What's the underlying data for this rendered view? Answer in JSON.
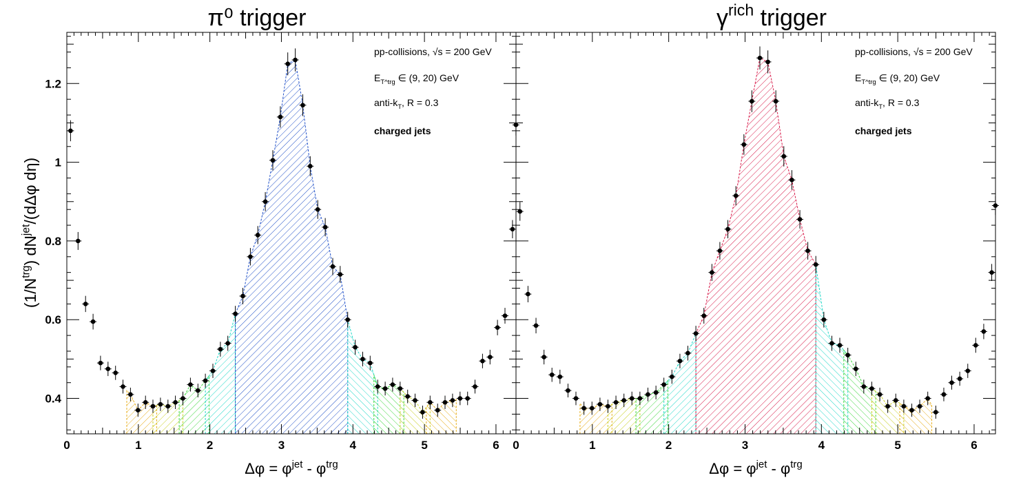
{
  "y_axis_title": "(1/N^trg) dN^jet/(dΔφ dη)",
  "chart_data": [
    {
      "type": "scatter",
      "panel": "left",
      "title": "π⁰ trigger",
      "xlabel": "Δφ = φ^jet - φ^trg",
      "xlim": [
        0,
        6.28
      ],
      "ylim": [
        0.31,
        1.33
      ],
      "x_ticks": [
        "0",
        "1",
        "2",
        "3",
        "4",
        "5",
        "6"
      ],
      "y_ticks": [
        "0.4",
        "0.6",
        "0.8",
        "1",
        "1.2"
      ],
      "annotations": [
        "pp-collisions, √s = 200 GeV",
        "E_T^trg ∈ (9, 20) GeV",
        "anti-k_T, R = 0.3",
        "charged jets"
      ],
      "series": [
        {
          "x": [
            0.052,
            0.157,
            0.262,
            0.367,
            0.471,
            0.576,
            0.681,
            0.785,
            0.89,
            0.995,
            1.1,
            1.204,
            1.309,
            1.414,
            1.518,
            1.623,
            1.728,
            1.833,
            1.937,
            2.042,
            2.147,
            2.251,
            2.356,
            2.461,
            2.566,
            2.67,
            2.775,
            2.88,
            2.985,
            3.089,
            3.194,
            3.299,
            3.403,
            3.508,
            3.613,
            3.718,
            3.822,
            3.927,
            4.032,
            4.137,
            4.241,
            4.346,
            4.451,
            4.555,
            4.66,
            4.765,
            4.869,
            4.974,
            5.079,
            5.184,
            5.288,
            5.393,
            5.498,
            5.603,
            5.707,
            5.812,
            5.917,
            6.021,
            6.126,
            6.231
          ],
          "y": [
            1.08,
            0.8,
            0.64,
            0.595,
            0.49,
            0.475,
            0.465,
            0.43,
            0.41,
            0.37,
            0.39,
            0.38,
            0.385,
            0.38,
            0.39,
            0.4,
            0.435,
            0.42,
            0.445,
            0.47,
            0.525,
            0.54,
            0.615,
            0.66,
            0.76,
            0.815,
            0.9,
            1.005,
            1.115,
            1.25,
            1.26,
            1.145,
            0.99,
            0.88,
            0.835,
            0.735,
            0.715,
            0.6,
            0.53,
            0.5,
            0.49,
            0.43,
            0.425,
            0.435,
            0.425,
            0.405,
            0.395,
            0.365,
            0.39,
            0.37,
            0.39,
            0.395,
            0.4,
            0.4,
            0.43,
            0.495,
            0.505,
            0.58,
            0.61,
            0.83
          ]
        }
      ],
      "extra_points": {
        "x": [
          6.279
        ],
        "y": [
          1.095
        ]
      },
      "bands": [
        {
          "name": "near-side",
          "color": "#e8b020",
          "x_from": 0.838,
          "x_to": 1.257
        },
        {
          "name": "near-side",
          "color": "#c8d020",
          "x_from": 1.204,
          "x_to": 1.623
        },
        {
          "name": "near-side",
          "color": "#40d840",
          "x_from": 1.571,
          "x_to": 1.99
        },
        {
          "name": "near-side",
          "color": "#20d8c8",
          "x_from": 1.937,
          "x_to": 2.356
        },
        {
          "name": "peak",
          "color": "#2050c8",
          "x_from": 2.356,
          "x_to": 3.927
        },
        {
          "name": "away-side",
          "color": "#20d8c8",
          "x_from": 3.927,
          "x_to": 4.346
        },
        {
          "name": "away-side",
          "color": "#40d840",
          "x_from": 4.293,
          "x_to": 4.712
        },
        {
          "name": "away-side",
          "color": "#c8d020",
          "x_from": 4.66,
          "x_to": 5.079
        },
        {
          "name": "away-side",
          "color": "#e8b020",
          "x_from": 5.026,
          "x_to": 5.445
        }
      ]
    },
    {
      "type": "scatter",
      "panel": "right",
      "title": "γ^rich trigger",
      "xlabel": "Δφ = φ^jet - φ^trg",
      "xlim": [
        0,
        6.28
      ],
      "ylim": [
        0.31,
        1.33
      ],
      "x_ticks": [
        "0",
        "1",
        "2",
        "3",
        "4",
        "5",
        "6"
      ],
      "y_ticks": [],
      "annotations": [
        "pp-collisions, √s = 200 GeV",
        "E_T^trg ∈ (9, 20) GeV",
        "anti-k_T, R = 0.3",
        "charged jets"
      ],
      "series": [
        {
          "x": [
            0.052,
            0.157,
            0.262,
            0.367,
            0.471,
            0.576,
            0.681,
            0.785,
            0.89,
            0.995,
            1.1,
            1.204,
            1.309,
            1.414,
            1.518,
            1.623,
            1.728,
            1.833,
            1.937,
            2.042,
            2.147,
            2.251,
            2.356,
            2.461,
            2.566,
            2.67,
            2.775,
            2.88,
            2.985,
            3.089,
            3.194,
            3.299,
            3.403,
            3.508,
            3.613,
            3.718,
            3.822,
            3.927,
            4.032,
            4.137,
            4.241,
            4.346,
            4.451,
            4.555,
            4.66,
            4.765,
            4.869,
            4.974,
            5.079,
            5.184,
            5.288,
            5.393,
            5.498,
            5.603,
            5.707,
            5.812,
            5.917,
            6.021,
            6.126,
            6.231
          ],
          "y": [
            0.875,
            0.665,
            0.585,
            0.505,
            0.46,
            0.455,
            0.42,
            0.4,
            0.375,
            0.375,
            0.385,
            0.38,
            0.39,
            0.395,
            0.4,
            0.4,
            0.41,
            0.415,
            0.435,
            0.455,
            0.495,
            0.515,
            0.565,
            0.61,
            0.72,
            0.775,
            0.83,
            0.915,
            1.045,
            1.155,
            1.265,
            1.255,
            1.155,
            1.015,
            0.955,
            0.855,
            0.775,
            0.74,
            0.6,
            0.54,
            0.535,
            0.51,
            0.475,
            0.43,
            0.425,
            0.41,
            0.38,
            0.395,
            0.38,
            0.37,
            0.38,
            0.4,
            0.365,
            0.41,
            0.44,
            0.45,
            0.47,
            0.535,
            0.57,
            0.72
          ]
        }
      ],
      "extra_points": {
        "x": [
          6.279
        ],
        "y": [
          0.89
        ]
      },
      "bands": [
        {
          "name": "near-side",
          "color": "#e8b020",
          "x_from": 0.838,
          "x_to": 1.257
        },
        {
          "name": "near-side",
          "color": "#c8d020",
          "x_from": 1.204,
          "x_to": 1.623
        },
        {
          "name": "near-side",
          "color": "#40d840",
          "x_from": 1.571,
          "x_to": 1.99
        },
        {
          "name": "near-side",
          "color": "#20d8c8",
          "x_from": 1.937,
          "x_to": 2.356
        },
        {
          "name": "peak",
          "color": "#d81848",
          "x_from": 2.356,
          "x_to": 3.927
        },
        {
          "name": "away-side",
          "color": "#20d8c8",
          "x_from": 3.927,
          "x_to": 4.346
        },
        {
          "name": "away-side",
          "color": "#40d840",
          "x_from": 4.293,
          "x_to": 4.712
        },
        {
          "name": "away-side",
          "color": "#c8d020",
          "x_from": 4.66,
          "x_to": 5.079
        },
        {
          "name": "away-side",
          "color": "#e8b020",
          "x_from": 5.026,
          "x_to": 5.445
        }
      ]
    }
  ]
}
